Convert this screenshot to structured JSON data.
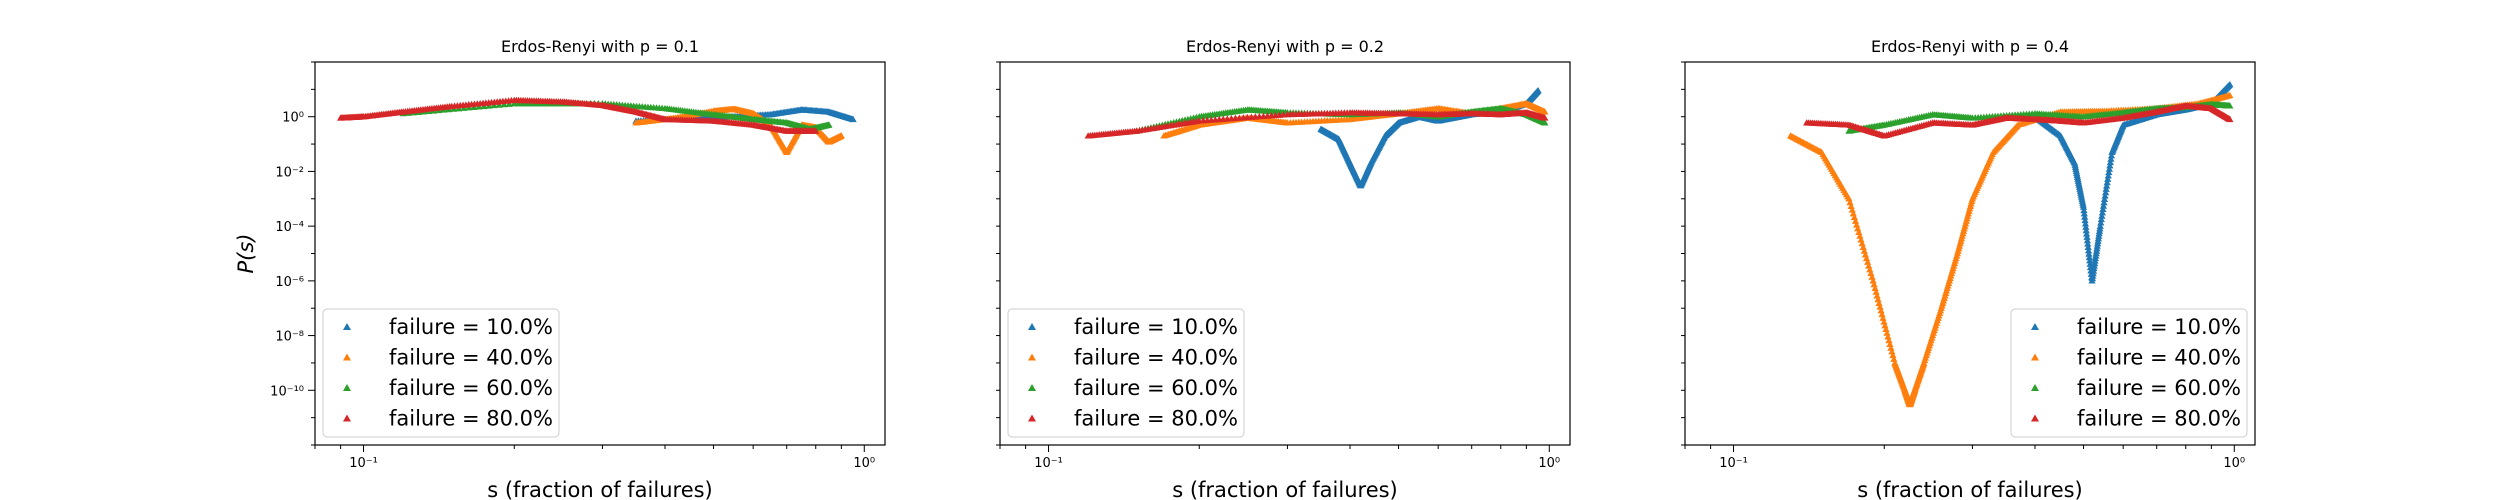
{
  "chart_data": [
    {
      "type": "scatter",
      "title": "Erdos-Renyi with p = 0.1",
      "xlabel": "s (fraction of failures)",
      "ylabel": "P(s)",
      "xscale": "log",
      "yscale": "log",
      "xlim": [
        0.08,
        1.1
      ],
      "ylim": [
        1e-12,
        100
      ],
      "xticks": [
        {
          "v": 0.1,
          "label": "10⁻¹"
        },
        {
          "v": 1,
          "label": "10⁰"
        }
      ],
      "yticks": [
        {
          "v": 1,
          "label": "10⁰"
        },
        {
          "v": 0.01,
          "label": "10⁻²"
        },
        {
          "v": 0.0001,
          "label": "10⁻⁴"
        },
        {
          "v": 1e-06,
          "label": "10⁻⁶"
        },
        {
          "v": 1e-08,
          "label": "10⁻⁸"
        },
        {
          "v": 1e-10,
          "label": "10⁻¹⁰"
        }
      ],
      "legend_position": "lower-left",
      "series": [
        {
          "name": "failure = 10.0%",
          "color": "#1f77b4",
          "marker": "triangle",
          "points": [
            [
              0.35,
              0.7
            ],
            [
              0.45,
              0.9
            ],
            [
              0.55,
              1.0
            ],
            [
              0.65,
              1.2
            ],
            [
              0.75,
              1.8
            ],
            [
              0.85,
              1.5
            ],
            [
              0.95,
              0.8
            ]
          ]
        },
        {
          "name": "failure = 40.0%",
          "color": "#ff7f0e",
          "marker": "triangle",
          "points": [
            [
              0.35,
              0.6
            ],
            [
              0.42,
              0.9
            ],
            [
              0.5,
              1.6
            ],
            [
              0.55,
              1.9
            ],
            [
              0.6,
              1.3
            ],
            [
              0.65,
              0.5
            ],
            [
              0.7,
              0.05
            ],
            [
              0.75,
              0.5
            ],
            [
              0.8,
              0.4
            ],
            [
              0.85,
              0.12
            ],
            [
              0.9,
              0.2
            ]
          ]
        },
        {
          "name": "failure = 60.0%",
          "color": "#2ca02c",
          "marker": "triangle",
          "points": [
            [
              0.12,
              1.3
            ],
            [
              0.2,
              3.0
            ],
            [
              0.3,
              3.0
            ],
            [
              0.4,
              2.0
            ],
            [
              0.5,
              1.2
            ],
            [
              0.6,
              0.8
            ],
            [
              0.7,
              0.6
            ],
            [
              0.78,
              0.35
            ],
            [
              0.85,
              0.5
            ]
          ]
        },
        {
          "name": "failure = 80.0%",
          "color": "#d62728",
          "marker": "triangle",
          "points": [
            [
              0.09,
              0.9
            ],
            [
              0.1,
              1.0
            ],
            [
              0.12,
              1.5
            ],
            [
              0.15,
              2.4
            ],
            [
              0.2,
              4.0
            ],
            [
              0.25,
              3.5
            ],
            [
              0.3,
              2.6
            ],
            [
              0.35,
              1.5
            ],
            [
              0.4,
              0.8
            ],
            [
              0.5,
              0.7
            ],
            [
              0.6,
              0.5
            ],
            [
              0.7,
              0.3
            ],
            [
              0.8,
              0.3
            ]
          ]
        }
      ]
    },
    {
      "type": "scatter",
      "title": "Erdos-Renyi with p = 0.2",
      "xlabel": "s (fraction of failures)",
      "ylabel": "",
      "xscale": "log",
      "yscale": "log",
      "xlim": [
        0.08,
        1.1
      ],
      "ylim": [
        1e-12,
        100
      ],
      "xticks": [
        {
          "v": 0.1,
          "label": "10⁻¹"
        },
        {
          "v": 1,
          "label": "10⁰"
        }
      ],
      "yticks": [],
      "legend_position": "lower-left",
      "series": [
        {
          "name": "failure = 10.0%",
          "color": "#1f77b4",
          "marker": "triangle",
          "points": [
            [
              0.35,
              0.35
            ],
            [
              0.38,
              0.15
            ],
            [
              0.4,
              0.02
            ],
            [
              0.42,
              0.003
            ],
            [
              0.44,
              0.02
            ],
            [
              0.47,
              0.2
            ],
            [
              0.5,
              0.6
            ],
            [
              0.55,
              1.0
            ],
            [
              0.6,
              0.7
            ],
            [
              0.7,
              1.2
            ],
            [
              0.8,
              1.5
            ],
            [
              0.9,
              3.0
            ],
            [
              0.95,
              9.0
            ]
          ]
        },
        {
          "name": "failure = 40.0%",
          "color": "#ff7f0e",
          "marker": "triangle",
          "points": [
            [
              0.17,
              0.2
            ],
            [
              0.2,
              0.5
            ],
            [
              0.25,
              0.9
            ],
            [
              0.3,
              0.6
            ],
            [
              0.4,
              0.8
            ],
            [
              0.5,
              1.3
            ],
            [
              0.6,
              2.0
            ],
            [
              0.7,
              1.3
            ],
            [
              0.8,
              2.0
            ],
            [
              0.9,
              3.0
            ],
            [
              0.98,
              1.5
            ]
          ]
        },
        {
          "name": "failure = 60.0%",
          "color": "#2ca02c",
          "marker": "triangle",
          "points": [
            [
              0.15,
              0.3
            ],
            [
              0.2,
              1.0
            ],
            [
              0.25,
              1.8
            ],
            [
              0.3,
              1.4
            ],
            [
              0.4,
              1.2
            ],
            [
              0.5,
              1.4
            ],
            [
              0.6,
              1.0
            ],
            [
              0.7,
              1.5
            ],
            [
              0.8,
              2.0
            ],
            [
              0.9,
              1.2
            ],
            [
              0.98,
              0.6
            ]
          ]
        },
        {
          "name": "failure = 80.0%",
          "color": "#d62728",
          "marker": "triangle",
          "points": [
            [
              0.12,
              0.2
            ],
            [
              0.15,
              0.3
            ],
            [
              0.2,
              0.7
            ],
            [
              0.3,
              1.2
            ],
            [
              0.4,
              1.4
            ],
            [
              0.5,
              1.3
            ],
            [
              0.6,
              1.2
            ],
            [
              0.7,
              1.3
            ],
            [
              0.8,
              1.2
            ],
            [
              0.9,
              1.4
            ],
            [
              0.98,
              0.9
            ]
          ]
        }
      ]
    },
    {
      "type": "scatter",
      "title": "Erdos-Renyi with p = 0.4",
      "xlabel": "s (fraction of failures)",
      "ylabel": "",
      "xscale": "log",
      "yscale": "log",
      "xlim": [
        0.08,
        1.1
      ],
      "ylim": [
        1e-12,
        100
      ],
      "xticks": [
        {
          "v": 0.1,
          "label": "10⁻¹"
        },
        {
          "v": 1,
          "label": "10⁰"
        }
      ],
      "yticks": [],
      "legend_position": "lower-right",
      "series": [
        {
          "name": "failure = 10.0%",
          "color": "#1f77b4",
          "marker": "triangle",
          "points": [
            [
              0.4,
              1.0
            ],
            [
              0.45,
              0.2
            ],
            [
              0.48,
              0.02
            ],
            [
              0.5,
              0.0005
            ],
            [
              0.52,
              1e-06
            ],
            [
              0.54,
              0.0001
            ],
            [
              0.57,
              0.05
            ],
            [
              0.6,
              0.5
            ],
            [
              0.7,
              1.2
            ],
            [
              0.8,
              1.8
            ],
            [
              0.9,
              3.0
            ],
            [
              0.98,
              15.0
            ]
          ]
        },
        {
          "name": "failure = 40.0%",
          "color": "#ff7f0e",
          "marker": "triangle",
          "points": [
            [
              0.13,
              0.2
            ],
            [
              0.15,
              0.05
            ],
            [
              0.17,
              0.001
            ],
            [
              0.19,
              1e-06
            ],
            [
              0.21,
              1e-09
            ],
            [
              0.22,
              1e-10
            ],
            [
              0.225,
              3e-11
            ],
            [
              0.23,
              1e-10
            ],
            [
              0.24,
              1e-09
            ],
            [
              0.26,
              1e-07
            ],
            [
              0.28,
              1e-05
            ],
            [
              0.3,
              0.001
            ],
            [
              0.33,
              0.05
            ],
            [
              0.37,
              0.5
            ],
            [
              0.45,
              1.5
            ],
            [
              0.55,
              1.6
            ],
            [
              0.7,
              2.0
            ],
            [
              0.85,
              3.0
            ],
            [
              0.98,
              6.0
            ]
          ]
        },
        {
          "name": "failure = 60.0%",
          "color": "#2ca02c",
          "marker": "triangle",
          "points": [
            [
              0.17,
              0.3
            ],
            [
              0.2,
              0.5
            ],
            [
              0.25,
              1.2
            ],
            [
              0.3,
              0.9
            ],
            [
              0.4,
              1.3
            ],
            [
              0.5,
              1.0
            ],
            [
              0.6,
              1.4
            ],
            [
              0.7,
              2.0
            ],
            [
              0.8,
              2.2
            ],
            [
              0.9,
              2.8
            ],
            [
              0.98,
              2.5
            ]
          ]
        },
        {
          "name": "failure = 80.0%",
          "color": "#d62728",
          "marker": "triangle",
          "points": [
            [
              0.14,
              0.6
            ],
            [
              0.17,
              0.5
            ],
            [
              0.2,
              0.2
            ],
            [
              0.25,
              0.6
            ],
            [
              0.3,
              0.5
            ],
            [
              0.35,
              0.9
            ],
            [
              0.4,
              0.8
            ],
            [
              0.45,
              0.7
            ],
            [
              0.5,
              0.6
            ],
            [
              0.6,
              0.9
            ],
            [
              0.7,
              1.5
            ],
            [
              0.8,
              2.5
            ],
            [
              0.9,
              2.0
            ],
            [
              0.98,
              0.8
            ]
          ]
        }
      ]
    }
  ]
}
